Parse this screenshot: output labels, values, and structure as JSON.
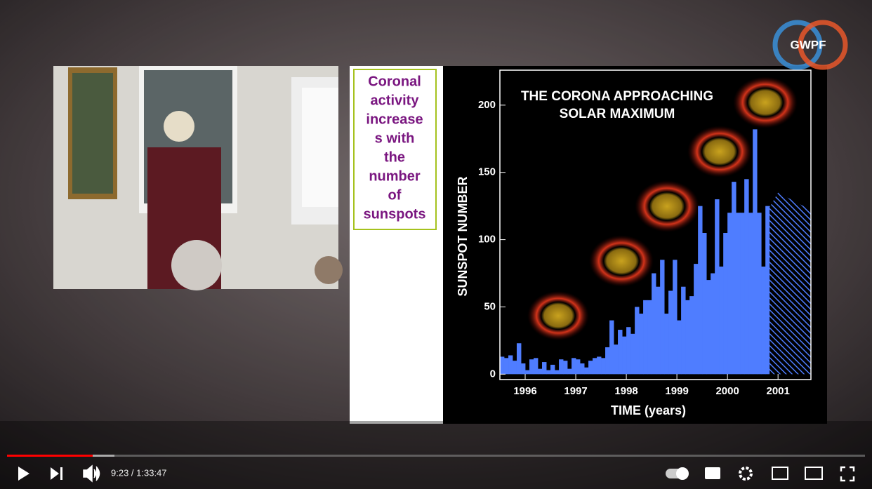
{
  "logo": "GWPF",
  "slide_note": [
    "Coronal",
    "activity",
    "increase",
    "s with",
    "the",
    "number",
    "of",
    "sunspots"
  ],
  "player": {
    "time": "9:23 / 1:33:47"
  },
  "chart_data": {
    "type": "histogram",
    "title": [
      "THE CORONA APPROACHING",
      "SOLAR MAXIMUM"
    ],
    "x_label": "TIME (years)",
    "y_label": "SUNSPOT NUMBER",
    "color": "#4f7dff",
    "bins": [
      1995.5,
      1995.583,
      1995.667,
      1995.75,
      1995.833,
      1995.917,
      1996.0,
      1996.083,
      1996.167,
      1996.25,
      1996.333,
      1996.417,
      1996.5,
      1996.583,
      1996.667,
      1996.75,
      1996.833,
      1996.917,
      1997.0,
      1997.083,
      1997.167,
      1997.25,
      1997.333,
      1997.417,
      1997.5,
      1997.583,
      1997.667,
      1997.75,
      1997.833,
      1997.917,
      1998.0,
      1998.083,
      1998.167,
      1998.25,
      1998.333,
      1998.417,
      1998.5,
      1998.583,
      1998.667,
      1998.75,
      1998.833,
      1998.917,
      1999.0,
      1999.083,
      1999.167,
      1999.25,
      1999.333,
      1999.417,
      1999.5,
      1999.583,
      1999.667,
      1999.75,
      1999.833,
      1999.917,
      2000.0,
      2000.083,
      2000.167,
      2000.25,
      2000.333,
      2000.417,
      2000.5,
      2000.583,
      2000.667,
      2000.75,
      2000.833
    ],
    "values": [
      13,
      12,
      14,
      10,
      23,
      8,
      3,
      11,
      12,
      4,
      9,
      3,
      7,
      3,
      11,
      10,
      4,
      12,
      11,
      8,
      5,
      10,
      12,
      13,
      12,
      20,
      40,
      22,
      33,
      28,
      35,
      30,
      50,
      45,
      55,
      55,
      75,
      65,
      85,
      45,
      62,
      85,
      40,
      65,
      55,
      58,
      82,
      125,
      105,
      70,
      75,
      130,
      80,
      105,
      120,
      143,
      120,
      120,
      145,
      120,
      182,
      120,
      80,
      125
    ],
    "forecast": {
      "x": [
        2000.833,
        2001.0,
        2001.65
      ],
      "values": [
        124,
        135,
        122
      ]
    },
    "xlim": [
      1995.5,
      2001.65
    ],
    "xticks": [
      1996,
      1997,
      1998,
      1999,
      2000,
      2001
    ],
    "ylim": [
      -4,
      226
    ],
    "yticks": [
      0,
      50,
      100,
      150,
      200
    ]
  }
}
